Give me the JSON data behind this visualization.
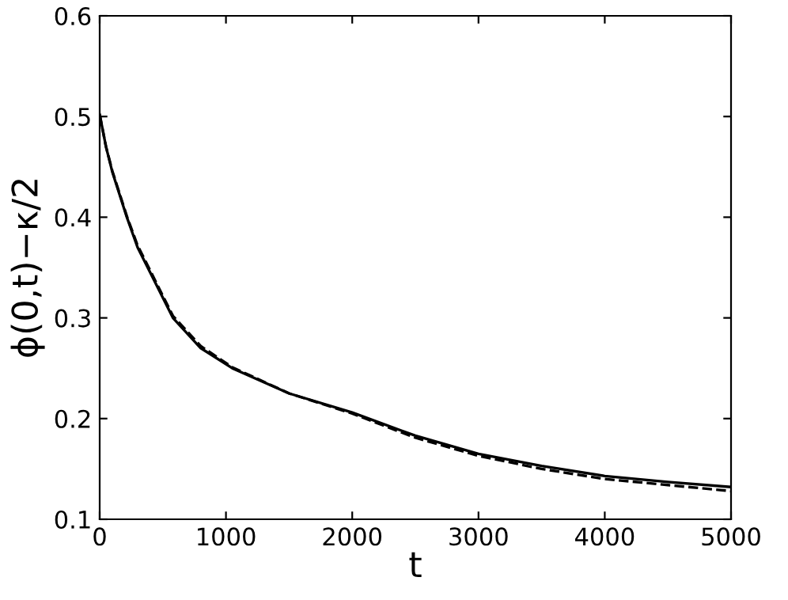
{
  "chart_data": {
    "type": "line",
    "xlabel": "t",
    "ylabel": "ϕ(0,t)−κ/2",
    "xlim": [
      0,
      5000
    ],
    "ylim": [
      0.1,
      0.6
    ],
    "xticks": [
      0,
      1000,
      2000,
      3000,
      4000,
      5000
    ],
    "yticks": [
      0.1,
      0.2,
      0.3,
      0.4,
      0.5,
      0.6
    ],
    "grid": false,
    "legend": false,
    "marker": "none",
    "series": [
      {
        "color": "#000000",
        "line_style": "solid",
        "x": [
          0,
          50,
          100,
          215,
          300,
          400,
          580,
          800,
          1050,
          1500,
          2000,
          2500,
          3000,
          3500,
          4000,
          4500,
          5000
        ],
        "values": [
          0.502,
          0.47,
          0.445,
          0.4,
          0.37,
          0.345,
          0.3,
          0.27,
          0.25,
          0.225,
          0.206,
          0.183,
          0.165,
          0.153,
          0.143,
          0.137,
          0.132
        ]
      },
      {
        "color": "#000000",
        "line_style": "dashed",
        "x": [
          0,
          50,
          100,
          215,
          300,
          400,
          580,
          800,
          1050,
          1500,
          2000,
          2500,
          3000,
          3500,
          4000,
          4500,
          5000
        ],
        "values": [
          0.502,
          0.47,
          0.446,
          0.401,
          0.372,
          0.347,
          0.302,
          0.272,
          0.251,
          0.225,
          0.205,
          0.181,
          0.163,
          0.15,
          0.14,
          0.134,
          0.128
        ]
      }
    ]
  }
}
